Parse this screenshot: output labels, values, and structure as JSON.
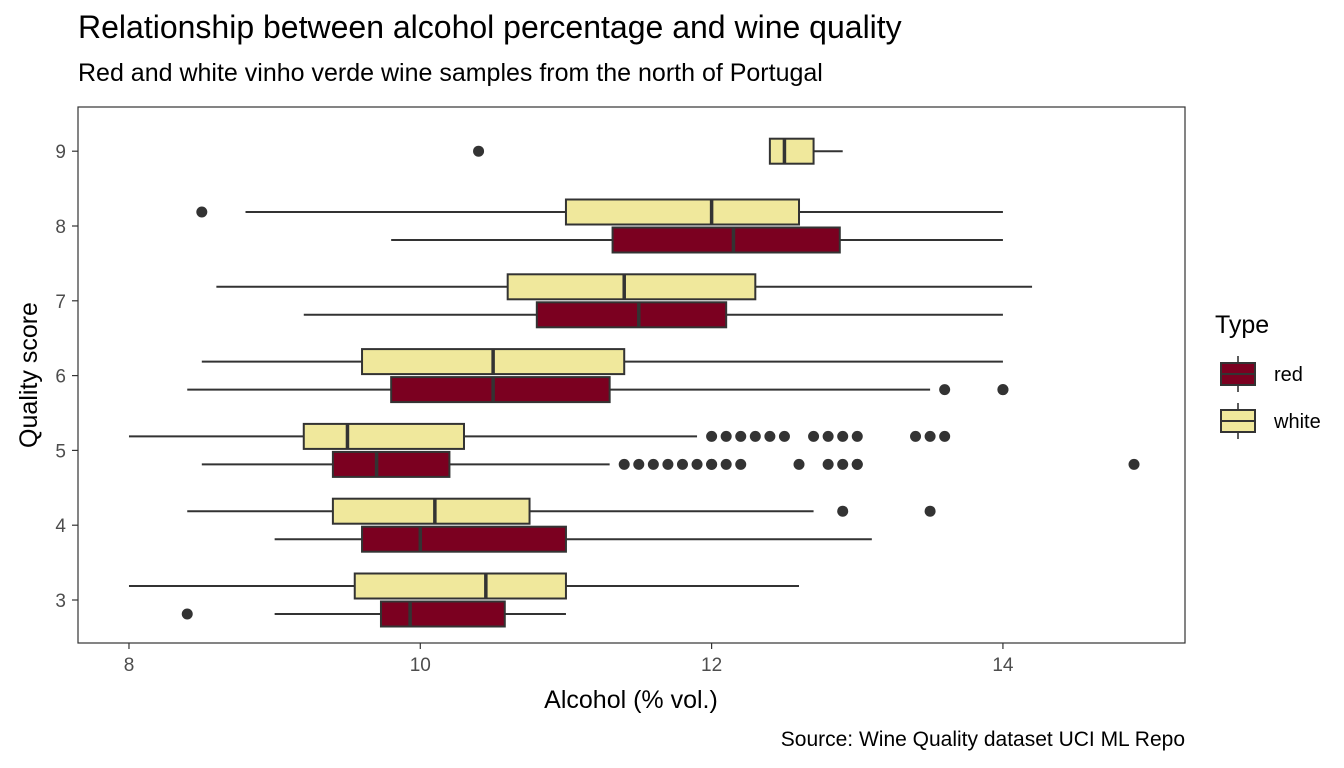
{
  "chart_data": {
    "type": "boxplot",
    "orientation": "horizontal",
    "title": "Relationship between alcohol percentage and wine quality",
    "subtitle": "Red and white vinho verde wine samples from the north of Portugal",
    "caption": "Source: Wine Quality dataset UCI ML Repo",
    "xlabel": "Alcohol (% vol.)",
    "ylabel": "Quality score",
    "xlim": [
      7.65,
      15.25
    ],
    "x_ticks": [
      8,
      10,
      12,
      14
    ],
    "categories": [
      "3",
      "4",
      "5",
      "6",
      "7",
      "8",
      "9"
    ],
    "grid": false,
    "legend": {
      "title": "Type",
      "position": "right",
      "entries": [
        {
          "label": "red",
          "color": "#7b0020"
        },
        {
          "label": "white",
          "color": "#f0e89c"
        }
      ]
    },
    "series": [
      {
        "name": "red",
        "color": "#7b0020",
        "boxes": [
          {
            "quality": "3",
            "whisker_low": 9.0,
            "q1": 9.73,
            "median": 9.93,
            "q3": 10.58,
            "whisker_high": 11.0,
            "outliers": [
              8.4
            ]
          },
          {
            "quality": "4",
            "whisker_low": 9.0,
            "q1": 9.6,
            "median": 10.0,
            "q3": 11.0,
            "whisker_high": 13.1,
            "outliers": []
          },
          {
            "quality": "5",
            "whisker_low": 8.5,
            "q1": 9.4,
            "median": 9.7,
            "q3": 10.2,
            "whisker_high": 11.3,
            "outliers": [
              11.4,
              11.5,
              11.6,
              11.7,
              11.8,
              11.9,
              12.0,
              12.0,
              12.1,
              12.2,
              12.6,
              12.8,
              12.9,
              13.0,
              13.0,
              14.9
            ]
          },
          {
            "quality": "6",
            "whisker_low": 8.4,
            "q1": 9.8,
            "median": 10.5,
            "q3": 11.3,
            "whisker_high": 13.5,
            "outliers": [
              13.6,
              14.0,
              14.0
            ]
          },
          {
            "quality": "7",
            "whisker_low": 9.2,
            "q1": 10.8,
            "median": 11.5,
            "q3": 12.1,
            "whisker_high": 14.0,
            "outliers": []
          },
          {
            "quality": "8",
            "whisker_low": 9.8,
            "q1": 11.32,
            "median": 12.15,
            "q3": 12.88,
            "whisker_high": 14.0,
            "outliers": []
          }
        ]
      },
      {
        "name": "white",
        "color": "#f0e89c",
        "boxes": [
          {
            "quality": "3",
            "whisker_low": 8.0,
            "q1": 9.55,
            "median": 10.45,
            "q3": 11.0,
            "whisker_high": 12.6,
            "outliers": []
          },
          {
            "quality": "4",
            "whisker_low": 8.4,
            "q1": 9.4,
            "median": 10.1,
            "q3": 10.75,
            "whisker_high": 12.7,
            "outliers": [
              12.9,
              13.5
            ]
          },
          {
            "quality": "5",
            "whisker_low": 8.0,
            "q1": 9.2,
            "median": 9.5,
            "q3": 10.3,
            "whisker_high": 11.9,
            "outliers": [
              12.0,
              12.1,
              12.2,
              12.3,
              12.4,
              12.5,
              12.7,
              12.8,
              12.9,
              13.0,
              13.4,
              13.5,
              13.6
            ]
          },
          {
            "quality": "6",
            "whisker_low": 8.5,
            "q1": 9.6,
            "median": 10.5,
            "q3": 11.4,
            "whisker_high": 14.0,
            "outliers": []
          },
          {
            "quality": "7",
            "whisker_low": 8.6,
            "q1": 10.6,
            "median": 11.4,
            "q3": 12.3,
            "whisker_high": 14.2,
            "outliers": []
          },
          {
            "quality": "8",
            "whisker_low": 8.8,
            "q1": 11.0,
            "median": 12.0,
            "q3": 12.6,
            "whisker_high": 14.0,
            "outliers": [
              8.5
            ]
          },
          {
            "quality": "9",
            "whisker_low": 12.4,
            "q1": 12.4,
            "median": 12.5,
            "q3": 12.7,
            "whisker_high": 12.9,
            "outliers": [
              10.4
            ]
          }
        ]
      }
    ]
  }
}
